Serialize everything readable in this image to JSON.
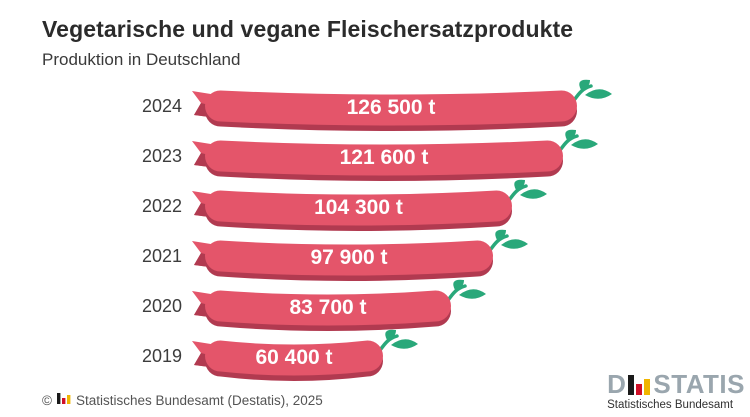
{
  "header": {
    "title": "Vegetarische und vegane Fleischersatzprodukte",
    "subtitle": "Produktion in Deutschland"
  },
  "chart_data": {
    "type": "bar",
    "orientation": "horizontal",
    "title": "Vegetarische und vegane Fleischersatzprodukte",
    "subtitle": "Produktion in Deutschland",
    "unit": "t",
    "categories": [
      "2024",
      "2023",
      "2022",
      "2021",
      "2020",
      "2019"
    ],
    "values": [
      126500,
      121600,
      104300,
      97900,
      83700,
      60400
    ],
    "value_labels": [
      "126 500 t",
      "121 600 t",
      "104 300 t",
      "97 900 t",
      "83 700 t",
      "60 400 t"
    ],
    "xlim": [
      0,
      126500
    ],
    "grid": false,
    "legend": "none",
    "bar_style": "sausage-with-sprout",
    "colors": {
      "bar": "#e4556a",
      "bar_shadow": "#b13a50",
      "leaf": "#29a87a",
      "value_text": "#ffffff",
      "year_text": "#3c3c3c"
    }
  },
  "footer": {
    "copyright": "©",
    "source": "Statistisches Bundesamt (Destatis), 2025"
  },
  "brand": {
    "logo_left": "D",
    "logo_right": "STATIS",
    "caption": "Statistisches Bundesamt",
    "colors": {
      "text": "#9aa6ae",
      "bar_black": "#1a1a1a",
      "bar_red": "#d00f27",
      "bar_yellow": "#f0b500"
    }
  }
}
